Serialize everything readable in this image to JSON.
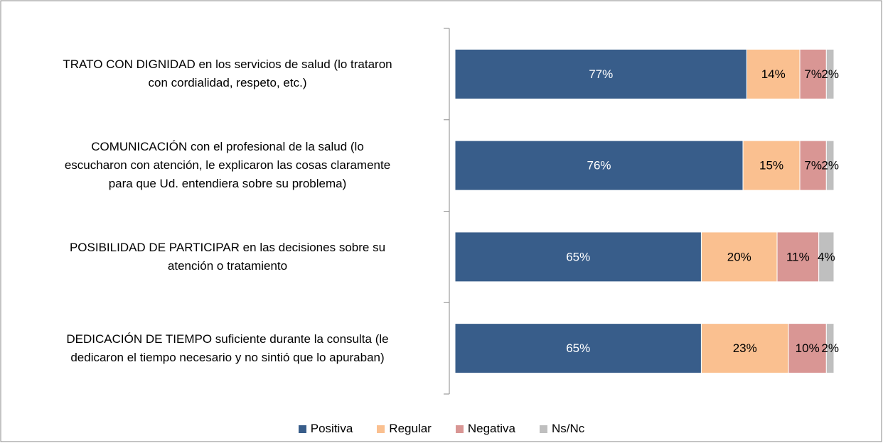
{
  "chart_data": {
    "type": "stacked_barh",
    "categories": [
      "TRATO CON DIGNIDAD en los servicios de salud (lo trataron\ncon cordialidad, respeto, etc.)",
      "COMUNICACIÓN con el profesional de la salud (lo\nescucharon con atención, le explicaron las cosas claramente\npara que Ud. entendiera sobre su problema)",
      "POSIBILIDAD DE PARTICIPAR en las decisiones sobre su\natención o tratamiento",
      "DEDICACIÓN DE TIEMPO suficiente durante la consulta (le\ndedicaron el tiempo necesario y no sintió que lo apuraban)"
    ],
    "series": [
      {
        "name": "Positiva",
        "color": "#385d8a",
        "label_color": "#ffffff",
        "values": [
          77,
          76,
          65,
          65
        ],
        "value_labels": [
          "77%",
          "76%",
          "65%",
          "65%"
        ]
      },
      {
        "name": "Regular",
        "color": "#fac090",
        "label_color": "#000000",
        "values": [
          14,
          15,
          20,
          23
        ],
        "value_labels": [
          "14%",
          "15%",
          "20%",
          "23%"
        ]
      },
      {
        "name": "Negativa",
        "color": "#d99694",
        "label_color": "#000000",
        "values": [
          7,
          7,
          11,
          10
        ],
        "value_labels": [
          "7%",
          "7%",
          "11%",
          "10%"
        ]
      },
      {
        "name": "Ns/Nc",
        "color": "#bfbfbf",
        "label_color": "#000000",
        "values": [
          2,
          2,
          4,
          2
        ],
        "value_labels": [
          "2%",
          "2%",
          "4%",
          "2%"
        ]
      }
    ],
    "legend": "bottom"
  }
}
